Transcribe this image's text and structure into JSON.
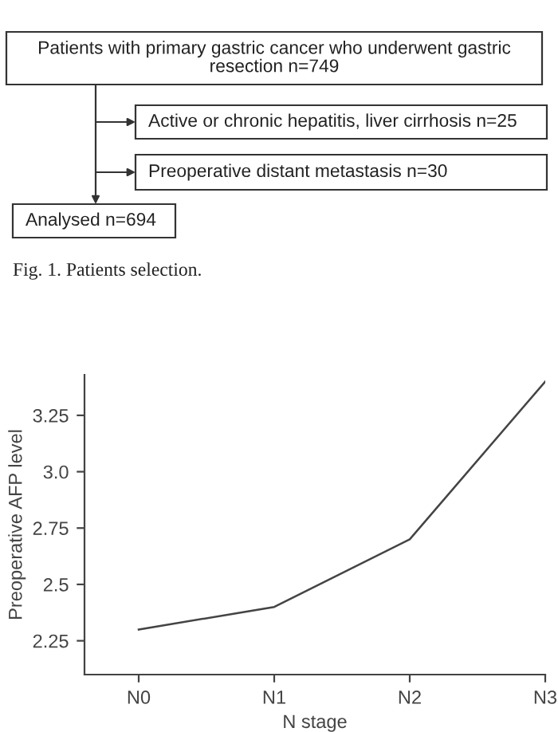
{
  "chart_data": [
    {
      "type": "other",
      "annotations": [
        "Patients with primary gastric cancer who underwent gastric\nresection n=749",
        "Active or chronic hepatitis, liver cirrhosis n=25",
        "Preoperative distant metastasis n=30",
        "Analysed n=694",
        "Fig. 1. Patients selection."
      ]
    },
    {
      "type": "line",
      "categories": [
        "N0",
        "N1",
        "N2",
        "N3"
      ],
      "xlabel": "N stage",
      "ylabel": "Preoperative AFP level",
      "ylim": [
        2.1,
        3.43
      ],
      "yticks": [
        {
          "value": 2.25,
          "label": "2.25"
        },
        {
          "value": 2.5,
          "label": "2.5"
        },
        {
          "value": 2.75,
          "label": "2.75"
        },
        {
          "value": 3.0,
          "label": "3.0"
        },
        {
          "value": 3.25,
          "label": "3.25"
        }
      ],
      "series": [
        {
          "color": "#444444",
          "values": [
            2.3,
            2.4,
            2.7,
            3.4
          ]
        }
      ],
      "grid": false,
      "marker": "none"
    }
  ]
}
